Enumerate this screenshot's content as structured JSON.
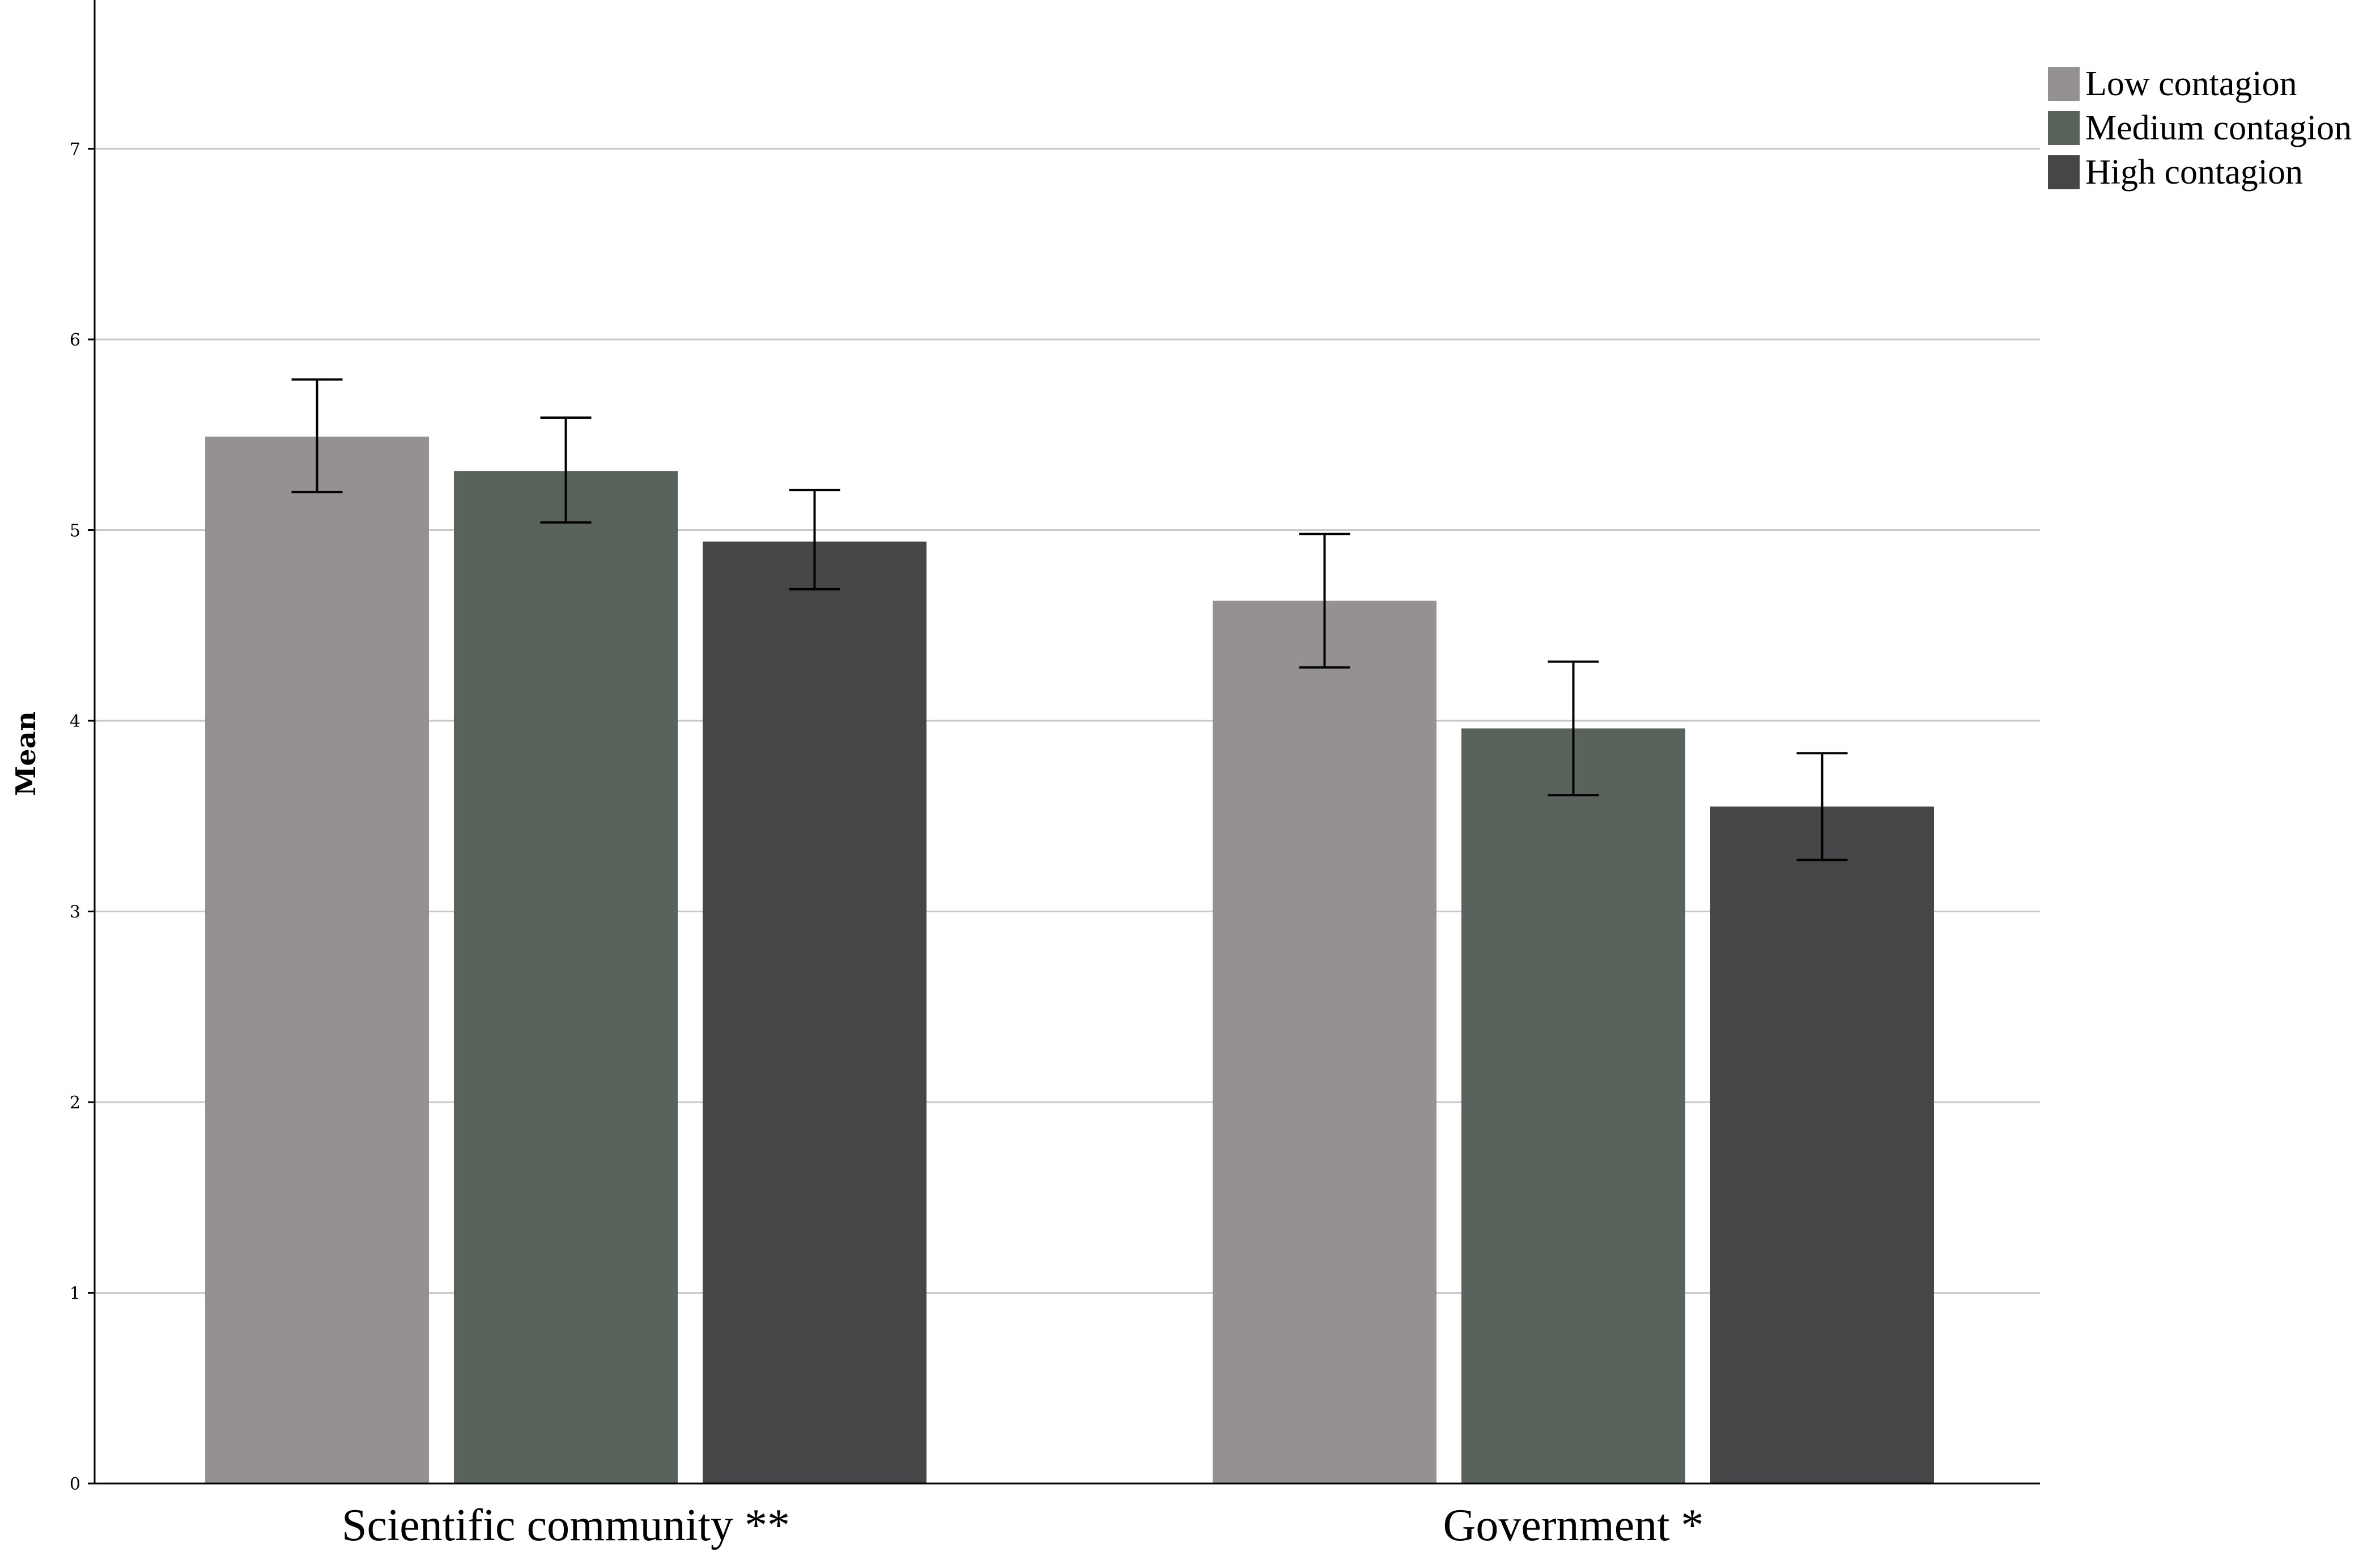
{
  "chart_data": {
    "type": "bar",
    "title": "",
    "xlabel": "",
    "ylabel": "Mean",
    "ylim": [
      0,
      7.8
    ],
    "yticks": [
      0,
      1,
      2,
      3,
      4,
      5,
      6,
      7
    ],
    "grid": true,
    "legend_position": "top-right",
    "categories": [
      "Scientific community **",
      "Government *"
    ],
    "series": [
      {
        "name": "Low contagion",
        "color": "#959190",
        "values": [
          5.49,
          4.63
        ],
        "error_low": [
          5.2,
          4.28
        ],
        "error_high": [
          5.79,
          4.98
        ]
      },
      {
        "name": "Medium contagion",
        "color": "#5a625c",
        "values": [
          5.31,
          3.96
        ],
        "error_low": [
          5.04,
          3.61
        ],
        "error_high": [
          5.59,
          4.31
        ]
      },
      {
        "name": "High contagion",
        "color": "#444648",
        "values": [
          4.94,
          3.55
        ],
        "error_low": [
          4.69,
          3.27
        ],
        "error_high": [
          5.21,
          3.83
        ]
      }
    ]
  }
}
